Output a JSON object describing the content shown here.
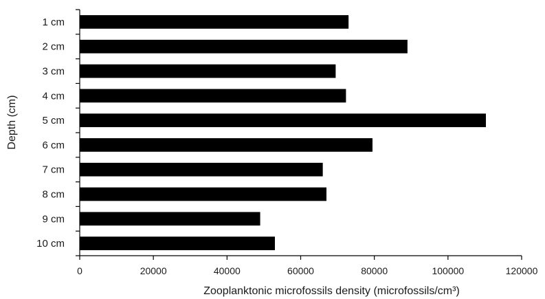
{
  "chart_data": {
    "type": "bar",
    "orientation": "horizontal",
    "title": "",
    "xlabel": "Zooplanktonic microfossils density (microfossils/cm³)",
    "ylabel": "Depth (cm)",
    "categories": [
      "1 cm",
      "2 cm",
      "3 cm",
      "4 cm",
      "5 cm",
      "6 cm",
      "7 cm",
      "8 cm",
      "9 cm",
      "10 cm"
    ],
    "values": [
      73000,
      89000,
      69500,
      72300,
      110300,
      79500,
      66000,
      67000,
      49000,
      53000
    ],
    "xlim": [
      0,
      120000
    ],
    "xticks": [
      "0",
      "20000",
      "40000",
      "60000",
      "80000",
      "100000",
      "120000"
    ],
    "grid": false,
    "legend": "none",
    "bar_color": "#000000"
  }
}
